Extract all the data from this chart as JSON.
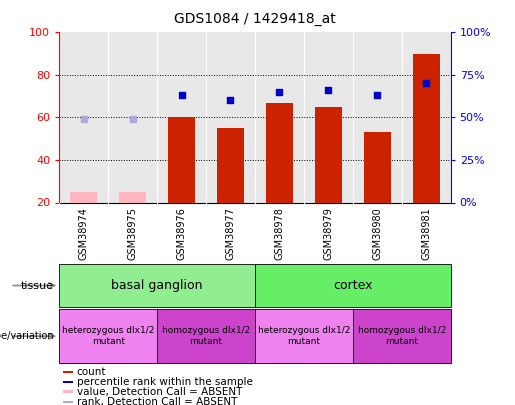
{
  "title": "GDS1084 / 1429418_at",
  "samples": [
    "GSM38974",
    "GSM38975",
    "GSM38976",
    "GSM38977",
    "GSM38978",
    "GSM38979",
    "GSM38980",
    "GSM38981"
  ],
  "count_values": [
    null,
    null,
    60,
    55,
    67,
    65,
    53,
    90
  ],
  "count_absent": [
    25,
    25,
    null,
    null,
    null,
    null,
    null,
    null
  ],
  "rank_values": [
    null,
    null,
    63,
    60,
    65,
    66,
    63,
    70
  ],
  "rank_absent": [
    49,
    49,
    null,
    null,
    null,
    null,
    null,
    null
  ],
  "ylim_left": [
    20,
    100
  ],
  "ylim_right": [
    0,
    100
  ],
  "tissue_groups": [
    {
      "label": "basal ganglion",
      "start": 0,
      "end": 4,
      "color": "#90ee90"
    },
    {
      "label": "cortex",
      "start": 4,
      "end": 8,
      "color": "#66ee66"
    }
  ],
  "genotype_groups": [
    {
      "label": "heterozygous dlx1/2\nmutant",
      "start": 0,
      "end": 2,
      "color": "#ee82ee"
    },
    {
      "label": "homozygous dlx1/2\nmutant",
      "start": 2,
      "end": 4,
      "color": "#cc44cc"
    },
    {
      "label": "heterozygous dlx1/2\nmutant",
      "start": 4,
      "end": 6,
      "color": "#ee82ee"
    },
    {
      "label": "homozygous dlx1/2\nmutant",
      "start": 6,
      "end": 8,
      "color": "#cc44cc"
    }
  ],
  "bar_color": "#cc2200",
  "absent_bar_color": "#ffb6c1",
  "rank_color": "#0000cc",
  "rank_absent_color": "#aaaadd",
  "bar_width": 0.55,
  "background_color": "#ffffff",
  "plot_bg_color": "#e8e8e8",
  "sample_bg_color": "#c8c8c8",
  "legend_items": [
    {
      "label": "count",
      "color": "#cc2200"
    },
    {
      "label": "percentile rank within the sample",
      "color": "#0000cc"
    },
    {
      "label": "value, Detection Call = ABSENT",
      "color": "#ffb6c1"
    },
    {
      "label": "rank, Detection Call = ABSENT",
      "color": "#aaaadd"
    }
  ]
}
